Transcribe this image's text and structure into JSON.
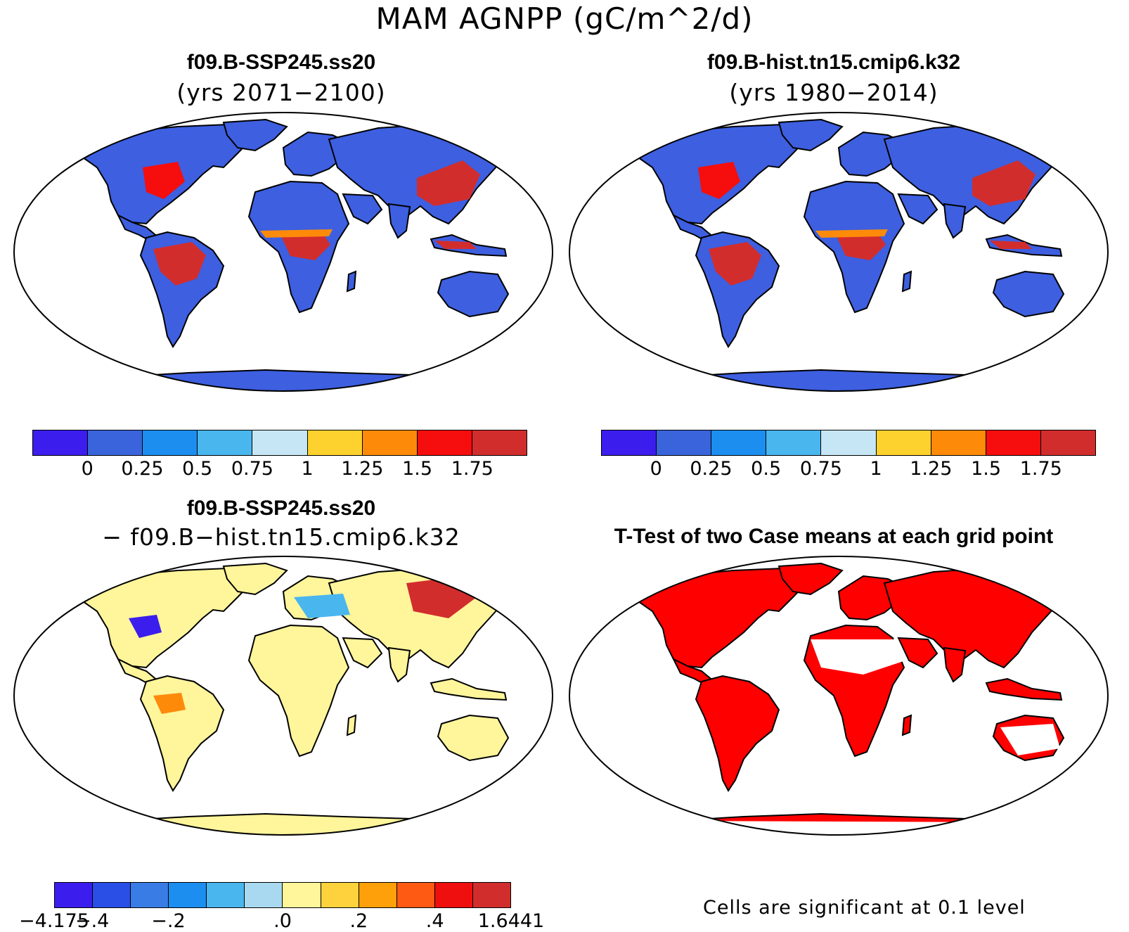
{
  "title": "MAM AGNPP (gC/m^2/d)",
  "panels": [
    {
      "id": "p1",
      "title": "f09.B-SSP245.ss20",
      "subtitle": "(yrs 2071−2100)",
      "fill": "#3d5fe0"
    },
    {
      "id": "p2",
      "title": "f09.B-hist.tn15.cmip6.k32",
      "subtitle": "(yrs 1980−2014)",
      "fill": "#3d5fe0"
    },
    {
      "id": "p3",
      "title": "f09.B-SSP245.ss20",
      "subtitle": "− f09.B−hist.tn15.cmip6.k32",
      "fill": "#fff59a"
    },
    {
      "id": "p4",
      "title": "T-Test of two Case means at each grid point",
      "subtitle": "",
      "fill": "#ff0000"
    }
  ],
  "colorbars": {
    "abs": {
      "colors": [
        "#3b1eee",
        "#3a64dc",
        "#1c8ef0",
        "#4ab6ee",
        "#c6e6f6",
        "#fdd12e",
        "#fe8a0a",
        "#f60d0d",
        "#d22d2d"
      ],
      "labels": [
        "0",
        "0.25",
        "0.5",
        "0.75",
        "1",
        "1.25",
        "1.5",
        "1.75"
      ]
    },
    "diff": {
      "colors": [
        "#3b1eee",
        "#2a4fe6",
        "#3a7ce6",
        "#1c8ef0",
        "#4ab6ee",
        "#a9d9f0",
        "#fff59a",
        "#fed23c",
        "#fea00a",
        "#fe5a14",
        "#f00f0f",
        "#d22d2d"
      ],
      "labels": [
        "−4.175",
        "−.4",
        "−.2",
        ".0",
        ".2",
        ".4",
        "1.6441"
      ],
      "label_boundaries": [
        0,
        1,
        3,
        6,
        8,
        10,
        12
      ]
    }
  },
  "ttest_note": "Cells are significant at 0.1 level"
}
